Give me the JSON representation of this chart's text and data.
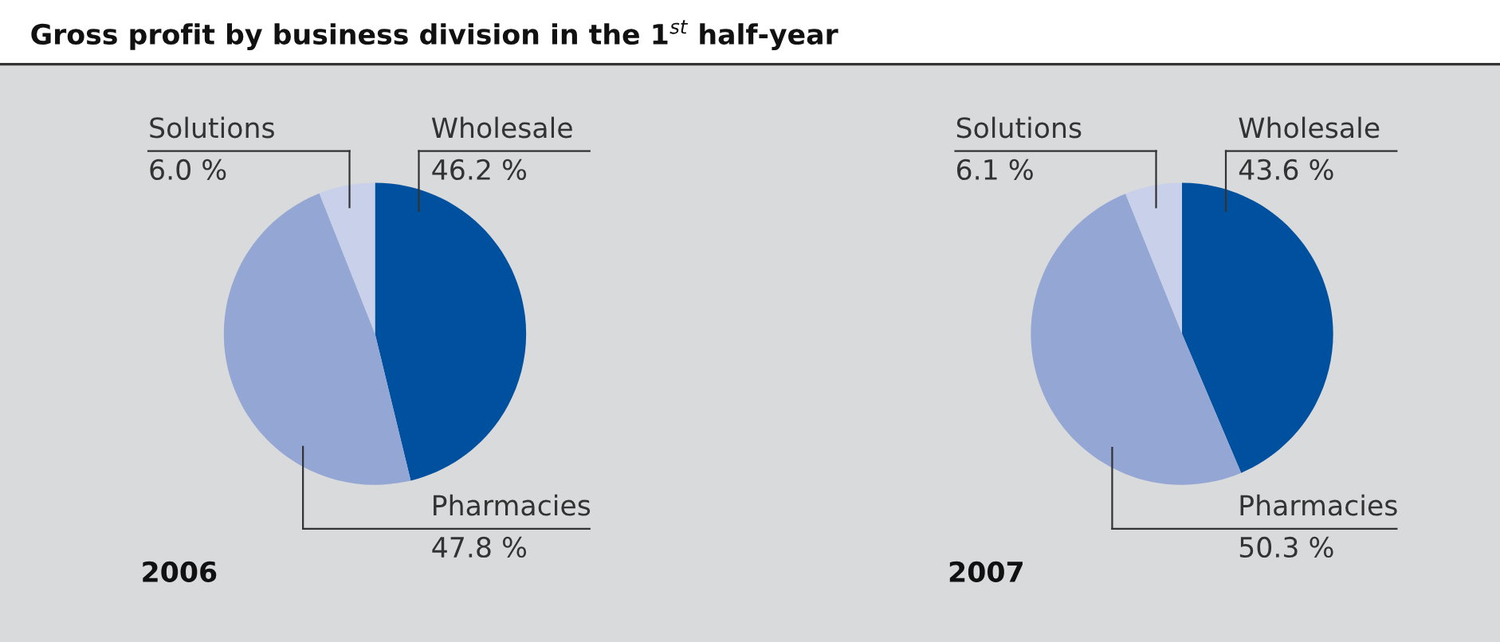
{
  "chart_data": [
    {
      "type": "pie",
      "title": "Gross profit by business division in the 1$^{st}$ half-year",
      "subtitle": "2006",
      "categories": [
        "Wholesale",
        "Pharmacies",
        "Solutions"
      ],
      "values": [
        46.2,
        47.8,
        6.0
      ],
      "colors": [
        "#0050a0",
        "#94a6d4",
        "#c8d0ea"
      ],
      "value_labels": [
        "46.2 %",
        "47.8 %",
        "6.0 %"
      ]
    },
    {
      "type": "pie",
      "subtitle": "2007",
      "categories": [
        "Wholesale",
        "Pharmacies",
        "Solutions"
      ],
      "values": [
        43.6,
        50.3,
        6.1
      ],
      "colors": [
        "#0050a0",
        "#94a6d4",
        "#c8d0ea"
      ],
      "value_labels": [
        "43.6 %",
        "50.3 %",
        "6.1 %"
      ]
    }
  ]
}
